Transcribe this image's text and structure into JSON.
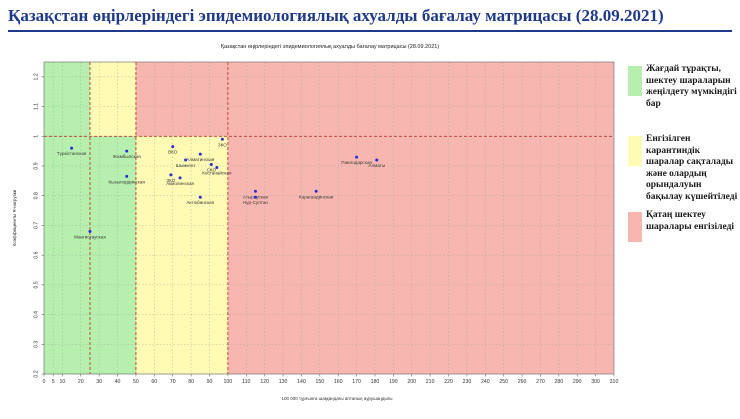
{
  "page": {
    "title": "Қазақстан өңірлеріндегі эпидемиологиялық ахуалды бағалау матрицасы  (28.09.2021)"
  },
  "legend": [
    {
      "text": "Жағдай тұрақты, шектеу шараларын жеңілдету мүмкіндігі бар",
      "color": "#b7efae"
    },
    {
      "text": "Енгізілген карантиндік шаралар сақталады және олардың орындалуын бақылау күшейтіледі",
      "color": "#fffbb4"
    },
    {
      "text": "Қатаң шектеу шаралары енгізіледі",
      "color": "#f7b7b0"
    }
  ],
  "chart_data": {
    "type": "scatter",
    "title": "Қазақстан өңірлеріндегі эпидемиологиялық ахуалды бағалау матрицасы  (28.09.2021)",
    "xlabel": "100 000 тұрғынға шаққандағы аптаның аурушаңдығы",
    "ylabel": "Коэффициенты R-нагрузки",
    "xlim": [
      0,
      310
    ],
    "ylim": [
      0.2,
      1.25
    ],
    "xticks": [
      0,
      5,
      10,
      20,
      30,
      40,
      50,
      60,
      70,
      80,
      90,
      100,
      110,
      120,
      130,
      140,
      150,
      160,
      170,
      180,
      190,
      200,
      210,
      220,
      230,
      240,
      250,
      260,
      270,
      280,
      290,
      300,
      310
    ],
    "yticks": [
      0.2,
      0.3,
      0.4,
      0.5,
      0.6,
      0.7,
      0.8,
      0.9,
      1.0,
      1.1,
      1.2
    ],
    "zones": [
      {
        "name": "green",
        "x": [
          0,
          50
        ],
        "y": [
          0.2,
          1.25
        ],
        "color": "#b7efae"
      },
      {
        "name": "yellow-upper",
        "x": [
          25,
          50
        ],
        "y": [
          1.0,
          1.25
        ],
        "color": "#fffbb4"
      },
      {
        "name": "yellow-lower",
        "x": [
          50,
          100
        ],
        "y": [
          0.2,
          1.0
        ],
        "color": "#fffbb4"
      },
      {
        "name": "red",
        "x": [
          50,
          310
        ],
        "y": [
          1.0,
          1.25
        ],
        "color": "#f7b7b0"
      },
      {
        "name": "red-lower",
        "x": [
          100,
          310
        ],
        "y": [
          0.2,
          1.0
        ],
        "color": "#f7b7b0"
      }
    ],
    "reference_lines": {
      "y": 1.0,
      "x": [
        25,
        50,
        100
      ],
      "color": "#c0392b"
    },
    "points": [
      {
        "label": "Түркістанская",
        "x": 15,
        "y": 0.96
      },
      {
        "label": "Жамбылская",
        "x": 45,
        "y": 0.95
      },
      {
        "label": "Кызылординская",
        "x": 45,
        "y": 0.865
      },
      {
        "label": "Мангистауская",
        "x": 25,
        "y": 0.68
      },
      {
        "label": "ЗКО",
        "x": 97,
        "y": 0.99
      },
      {
        "label": "ВКО",
        "x": 70,
        "y": 0.965
      },
      {
        "label": "Алматинская",
        "x": 85,
        "y": 0.94
      },
      {
        "label": "Шымкент",
        "x": 77,
        "y": 0.92
      },
      {
        "label": "ЗКО",
        "x": 69,
        "y": 0.87
      },
      {
        "label": "Акмолинская",
        "x": 74,
        "y": 0.86
      },
      {
        "label": "СКО",
        "x": 91,
        "y": 0.905
      },
      {
        "label": "Костанайская",
        "x": 94,
        "y": 0.895
      },
      {
        "label": "Актюбинская",
        "x": 85,
        "y": 0.795
      },
      {
        "label": "Атырауская",
        "x": 115,
        "y": 0.815
      },
      {
        "label": "Нур-Султан",
        "x": 115,
        "y": 0.795
      },
      {
        "label": "Карагандинская",
        "x": 148,
        "y": 0.815
      },
      {
        "label": "Павлодарская",
        "x": 170,
        "y": 0.93
      },
      {
        "label": "Алматы",
        "x": 181,
        "y": 0.92
      }
    ]
  }
}
